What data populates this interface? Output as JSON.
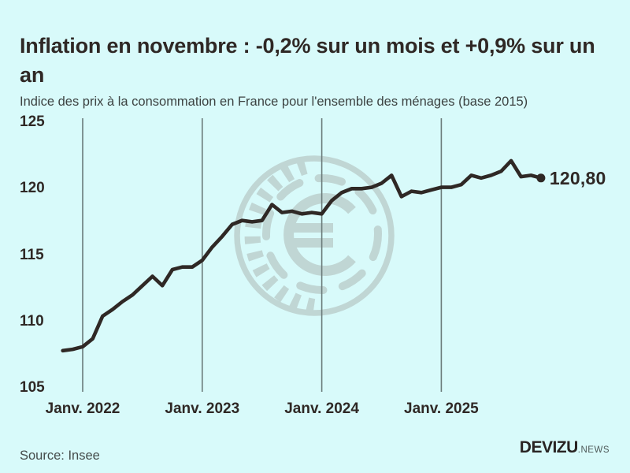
{
  "header": {
    "title": "Inflation en novembre : -0,2% sur un mois et +0,9% sur un an",
    "subtitle": "Indice des prix à la consommation en France pour l'ensemble des ménages (base 2015)"
  },
  "chart_data": {
    "type": "line",
    "title": "Indice des prix à la consommation en France pour l'ensemble des ménages (base 2015)",
    "x_months": [
      "2021-11",
      "2021-12",
      "2022-01",
      "2022-02",
      "2022-03",
      "2022-04",
      "2022-05",
      "2022-06",
      "2022-07",
      "2022-08",
      "2022-09",
      "2022-10",
      "2022-11",
      "2022-12",
      "2023-01",
      "2023-02",
      "2023-03",
      "2023-04",
      "2023-05",
      "2023-06",
      "2023-07",
      "2023-08",
      "2023-09",
      "2023-10",
      "2023-11",
      "2023-12",
      "2024-01",
      "2024-02",
      "2024-03",
      "2024-04",
      "2024-05",
      "2024-06",
      "2024-07",
      "2024-08",
      "2024-09",
      "2024-10",
      "2024-11",
      "2024-12",
      "2025-01",
      "2025-02",
      "2025-03",
      "2025-04",
      "2025-05",
      "2025-06",
      "2025-07",
      "2025-08",
      "2025-09",
      "2025-10",
      "2025-11"
    ],
    "values": [
      107.8,
      107.9,
      108.1,
      108.7,
      110.4,
      110.9,
      111.5,
      112.0,
      112.7,
      113.4,
      112.7,
      113.9,
      114.1,
      114.1,
      114.6,
      115.6,
      116.4,
      117.3,
      117.6,
      117.5,
      117.6,
      118.8,
      118.2,
      118.3,
      118.1,
      118.2,
      118.1,
      119.1,
      119.7,
      120.0,
      120.0,
      120.1,
      120.4,
      121.0,
      119.4,
      119.8,
      119.7,
      119.9,
      120.1,
      120.1,
      120.3,
      121.0,
      120.8,
      121.0,
      121.3,
      122.1,
      120.9,
      121.0,
      120.8
    ],
    "series_name": "Indice des prix à la consommation",
    "x_tick_labels": [
      "Janv. 2022",
      "Janv. 2023",
      "Janv. 2024",
      "Janv. 2025"
    ],
    "y_ticks": [
      "105",
      "110",
      "115",
      "120",
      "125"
    ],
    "ylim": [
      105,
      125
    ],
    "end_label": "120,80",
    "end_value": 120.8,
    "grid": "vertical-only",
    "legend": "none"
  },
  "watermark": {
    "icon": "euro-coin-watermark",
    "symbol": "€"
  },
  "footer": {
    "source": "Source: Insee"
  },
  "logo": {
    "name": "DEVIZU",
    "suffix": ".NEWS"
  },
  "colors": {
    "background": "#d8fafa",
    "ink": "#2f2825",
    "line": "#2f2825",
    "gridline": "#6b7b7a",
    "watermark": "#c0d6d4",
    "subtitle": "#3c4241",
    "source": "#454c4b"
  }
}
